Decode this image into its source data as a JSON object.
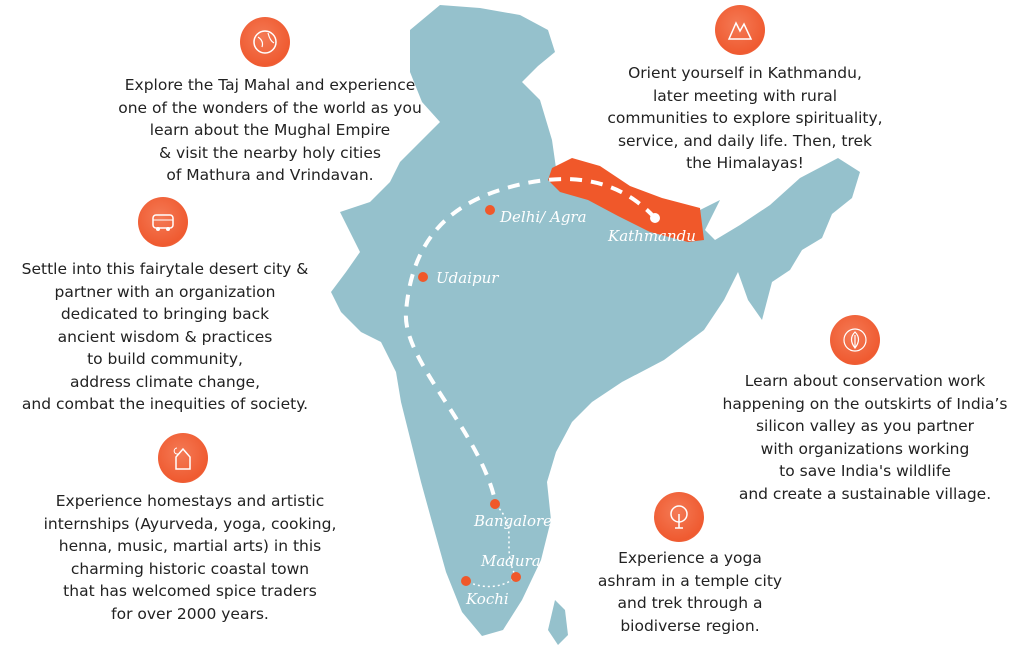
{
  "colors": {
    "land": "#95c1cc",
    "nepal": "#f0582a",
    "accent": "#f0582a",
    "route": "#ffffff"
  },
  "cities": [
    {
      "name": "Delhi/ Agra",
      "marker": "orange"
    },
    {
      "name": "Udaipur",
      "marker": "orange"
    },
    {
      "name": "Kathmandu",
      "marker": "white"
    },
    {
      "name": "Bangalore",
      "marker": "orange"
    },
    {
      "name": "Madurai",
      "marker": "orange"
    },
    {
      "name": "Kochi",
      "marker": "orange"
    }
  ],
  "blurbs": {
    "delhi": {
      "icon": "globe-icon",
      "text": "Explore the Taj Mahal and experience\none of the wonders of the world as you\nlearn about the Mughal Empire\n& visit the nearby holy cities\nof Mathura and Vrindavan."
    },
    "kathmandu": {
      "icon": "mountain-icon",
      "text": "Orient yourself in Kathmandu,\nlater meeting with rural\ncommunities to explore spirituality,\nservice, and daily life. Then, trek\nthe Himalayas!"
    },
    "udaipur": {
      "icon": "bus-icon",
      "text": "Settle into this fairytale desert city &\npartner with an organization\ndedicated to bringing back\nancient wisdom & practices\nto build community,\naddress climate change,\nand combat the inequities of society."
    },
    "bangalore": {
      "icon": "leaf-icon",
      "text": "Learn about conservation work\nhappening on the outskirts of India’s\nsilicon valley as you partner\nwith organizations working\nto save India's wildlife\nand create a sustainable village."
    },
    "kochi": {
      "icon": "house-moon-icon",
      "text": "Experience homestays and artistic\ninternships (Ayurveda, yoga, cooking,\nhenna, music, martial arts) in this\ncharming historic coastal town\nthat has welcomed spice traders\nfor over 2000 years."
    },
    "madurai": {
      "icon": "tree-icon",
      "text": "Experience a yoga\nashram in a temple city\nand trek through a\nbiodiverse region."
    }
  }
}
